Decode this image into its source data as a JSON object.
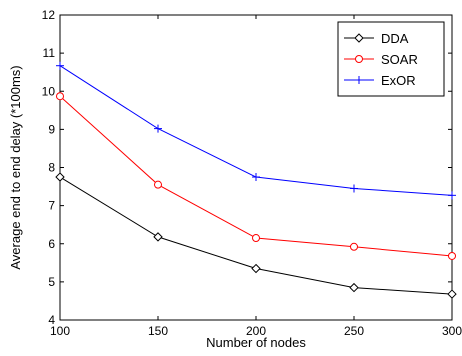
{
  "chart_data": {
    "type": "line",
    "xlabel": "Number of nodes",
    "ylabel": "Average end to end delay (*100ms)",
    "x": [
      100,
      150,
      200,
      250,
      300
    ],
    "xlim": [
      100,
      300
    ],
    "ylim": [
      4,
      12
    ],
    "xticks": [
      "100",
      "150",
      "200",
      "250",
      "300"
    ],
    "yticks": [
      "4",
      "5",
      "6",
      "7",
      "8",
      "9",
      "10",
      "11",
      "12"
    ],
    "grid": false,
    "legend_position": "top-right",
    "series": [
      {
        "name": "DDA",
        "color": "#000000",
        "marker": "diamond",
        "values": [
          7.75,
          6.18,
          5.35,
          4.85,
          4.68
        ]
      },
      {
        "name": "SOAR",
        "color": "#ff0000",
        "marker": "circle",
        "values": [
          9.87,
          7.55,
          6.15,
          5.92,
          5.68
        ]
      },
      {
        "name": "ExOR",
        "color": "#0000ff",
        "marker": "plus",
        "values": [
          10.67,
          9.02,
          7.75,
          7.45,
          7.27
        ]
      }
    ]
  }
}
